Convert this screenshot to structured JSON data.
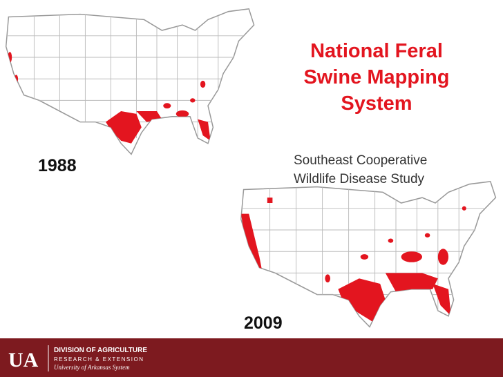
{
  "slide": {
    "title": [
      "National Feral",
      "Swine Mapping",
      "System"
    ],
    "subtitle": [
      "Southeast Cooperative",
      "Wildlife Disease Study"
    ],
    "maps": [
      {
        "year": "1988"
      },
      {
        "year": "2009"
      }
    ],
    "footer": {
      "logo": "UA",
      "lines": [
        "DIVISION OF AGRICULTURE",
        "RESEARCH & EXTENSION",
        "University of Arkansas System"
      ]
    }
  }
}
